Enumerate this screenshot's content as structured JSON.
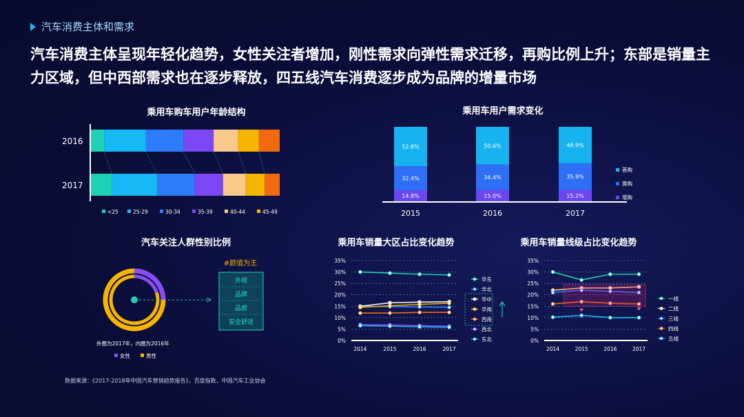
{
  "section_label": "汽车消费主体和需求",
  "headline": "汽车消费主体呈现年轻化趋势，女性关注者增加，刚性需求向弹性需求迁移，再购比例上升；东部是销量主力区域，但中西部需求也在逐步释放，四五线汽车消费逐步成为品牌的增量市场",
  "source": "数据来源：《2017-2018年中国汽车营销趋势报告》，百度指数，中国汽车工业协会",
  "chart_data": [
    {
      "type": "bar",
      "orientation": "horizontal-stacked",
      "title": "乘用车购车用户年龄结构",
      "categories": [
        "2016",
        "2017"
      ],
      "series": [
        {
          "name": "<25",
          "color": "#1fd1b3",
          "values": [
            7,
            11
          ]
        },
        {
          "name": "25-29",
          "color": "#17b9f5",
          "values": [
            22,
            24
          ]
        },
        {
          "name": "30-34",
          "color": "#2d7dfa",
          "values": [
            20,
            20
          ]
        },
        {
          "name": "35-39",
          "color": "#7c47f5",
          "values": [
            16,
            15
          ]
        },
        {
          "name": "40-44",
          "color": "#f8c98a",
          "values": [
            13,
            12
          ]
        },
        {
          "name": "45-49",
          "color": "#f5b400",
          "values": [
            11,
            10
          ]
        },
        {
          "name": ">50",
          "color": "#f06a10",
          "values": [
            11,
            8
          ]
        }
      ]
    },
    {
      "type": "bar",
      "orientation": "vertical-stacked",
      "title": "乘用车用户需求变化",
      "categories": [
        "2015",
        "2016",
        "2017"
      ],
      "series": [
        {
          "name": "增购",
          "color": "#6a47f0",
          "values": [
            14.8,
            15.0,
            15.2
          ],
          "labels": [
            "14.8%",
            "15.0%",
            "15.2%"
          ]
        },
        {
          "name": "换购",
          "color": "#2f6ff5",
          "values": [
            32.4,
            34.4,
            35.9
          ],
          "labels": [
            "32.4%",
            "34.4%",
            "35.9%"
          ]
        },
        {
          "name": "首购",
          "color": "#17b3f0",
          "values": [
            52.8,
            50.6,
            48.9
          ],
          "labels": [
            "52.8%",
            "50.6%",
            "48.9%"
          ]
        }
      ],
      "legend_order": [
        "首购",
        "换购",
        "增购"
      ]
    },
    {
      "type": "pie",
      "title": "汽车关注人群性别比例",
      "note": "外圈为2017年，内圈为2016年",
      "outer_2017": [
        {
          "name": "女性",
          "value": 25
        },
        {
          "name": "男性",
          "value": 75
        }
      ],
      "inner_2016": [
        {
          "name": "女性",
          "value": 20
        },
        {
          "name": "男性",
          "value": 80
        }
      ],
      "legend": [
        {
          "name": "女性",
          "color": "#8a4df5"
        },
        {
          "name": "男性",
          "color": "#f5b400"
        }
      ]
    },
    {
      "type": "line",
      "title": "乘用车销量大区占比变化趋势",
      "x": [
        "2014",
        "2015",
        "2016",
        "2017"
      ],
      "ylim": [
        0,
        35
      ],
      "yticks": [
        "0%",
        "5%",
        "10%",
        "15%",
        "20%",
        "25%",
        "30%",
        "35%"
      ],
      "series": [
        {
          "name": "华东",
          "color": "#1fd1b3",
          "values": [
            30,
            29.5,
            29,
            28.7
          ]
        },
        {
          "name": "华北",
          "color": "#2d7dfa",
          "values": [
            15,
            14.8,
            14.7,
            14.5
          ]
        },
        {
          "name": "华中",
          "color": "#f0f0f0",
          "values": [
            15,
            16.5,
            16.8,
            17
          ]
        },
        {
          "name": "华南",
          "color": "#f5b400",
          "values": [
            14.5,
            15.2,
            15.8,
            16.3
          ]
        },
        {
          "name": "西南",
          "color": "#f06a10",
          "values": [
            12,
            12,
            12.3,
            12.3
          ]
        },
        {
          "name": "西北",
          "color": "#7c47f5",
          "values": [
            7,
            6.8,
            6.5,
            6.3
          ]
        },
        {
          "name": "东北",
          "color": "#17b9f5",
          "values": [
            6.5,
            6.3,
            6,
            5.8
          ]
        }
      ]
    },
    {
      "type": "line",
      "title": "乘用车销量线级占比变化趋势",
      "x": [
        "2014",
        "2015",
        "2016",
        "2017"
      ],
      "ylim": [
        0,
        35
      ],
      "yticks": [
        "0%",
        "5%",
        "10%",
        "15%",
        "20%",
        "25%",
        "30%",
        "35%"
      ],
      "series": [
        {
          "name": "一线",
          "color": "#1fd1b3",
          "values": [
            30,
            26.5,
            29,
            29
          ]
        },
        {
          "name": "二线",
          "color": "#f8c98a",
          "values": [
            22,
            23,
            23,
            23.5
          ]
        },
        {
          "name": "三线",
          "color": "#2d7dfa",
          "values": [
            21,
            22,
            21.5,
            21
          ]
        },
        {
          "name": "四线",
          "color": "#f06a10",
          "values": [
            16,
            17,
            16.3,
            16
          ]
        },
        {
          "name": "五线",
          "color": "#17b9f5",
          "values": [
            10.2,
            11,
            10,
            10
          ]
        }
      ]
    }
  ],
  "gender_panel": {
    "title": "#颜值为王",
    "items": [
      "外观",
      "品牌",
      "品质",
      "安全舒适"
    ]
  }
}
